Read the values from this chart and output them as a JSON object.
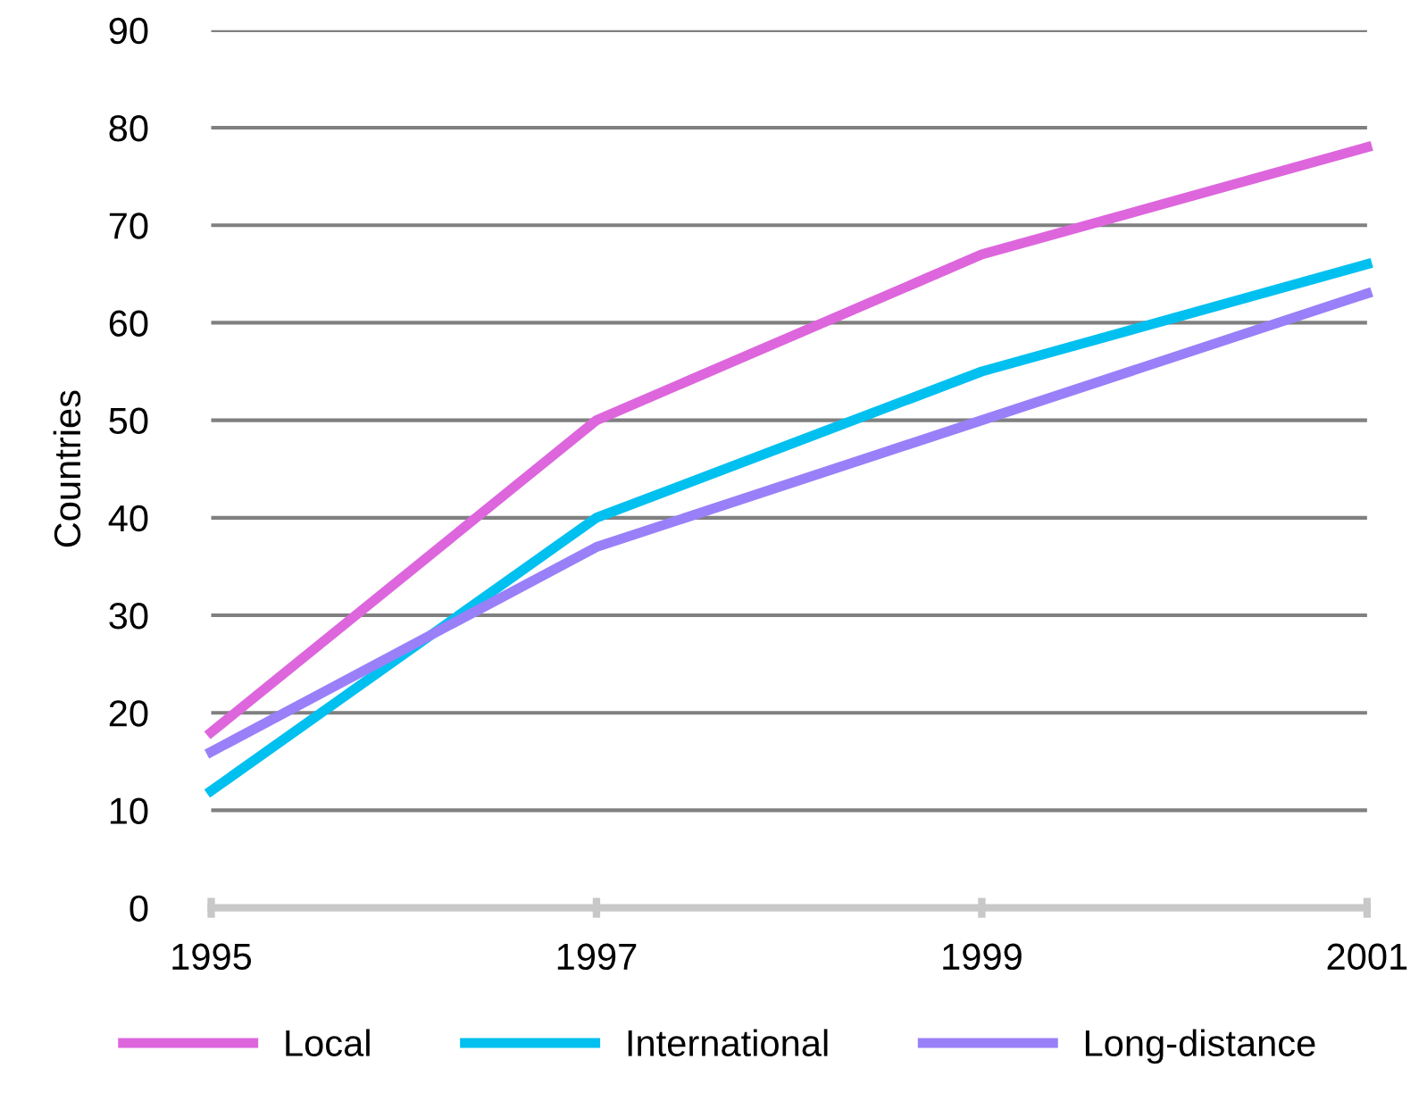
{
  "chart_data": {
    "type": "line",
    "ylabel": "Countries",
    "x": [
      1995,
      1997,
      1999,
      2001
    ],
    "series": [
      {
        "name": "Local",
        "color": "#dd66dd",
        "values": [
          18,
          50,
          67,
          78
        ]
      },
      {
        "name": "International",
        "color": "#00c0f0",
        "values": [
          12,
          40,
          55,
          66
        ]
      },
      {
        "name": "Long-distance",
        "color": "#9980f8",
        "values": [
          16,
          37,
          50,
          63
        ]
      }
    ],
    "xlim": [
      1995,
      2001
    ],
    "xticks": [
      1995,
      1997,
      1999,
      2001
    ],
    "ylim": [
      0,
      90
    ],
    "yticks": [
      0,
      10,
      20,
      30,
      40,
      50,
      60,
      70,
      80,
      90
    ],
    "grid": "y",
    "legend": "bottom",
    "marker": "none",
    "line_style": "solid"
  }
}
